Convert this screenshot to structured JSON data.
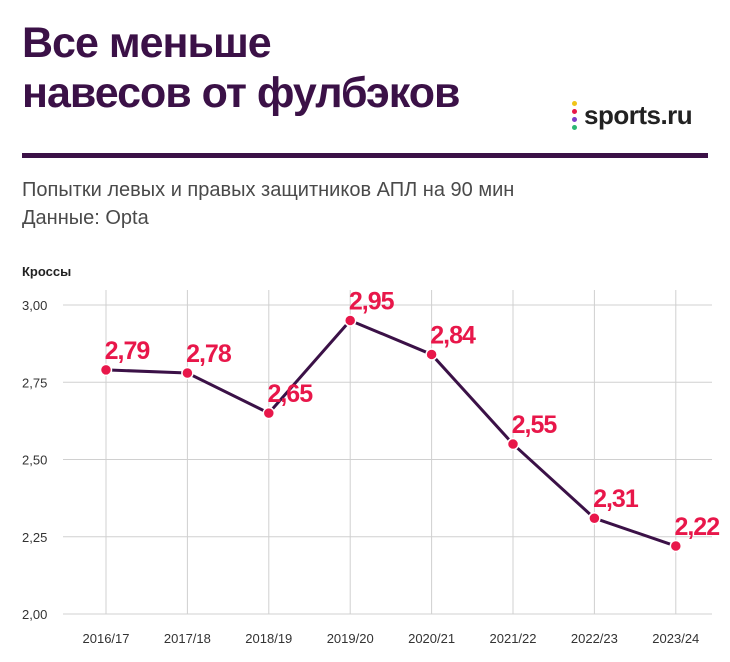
{
  "header": {
    "title_line1": "Все меньше",
    "title_line2": "навесов от фулбэков",
    "logo_text": "sports.ru",
    "subtitle_line1": "Попытки левых и правых защитников АПЛ на 90 мин",
    "subtitle_line2": "Данные: Opta"
  },
  "colors": {
    "title": "#3b1147",
    "line": "#3b1147",
    "marker": "#e8174a",
    "label": "#e8174a",
    "grid": "#d0d0d0",
    "logo_dots": [
      "#f0c419",
      "#e8174a",
      "#7c3cc9",
      "#2bb673"
    ]
  },
  "chart_data": {
    "type": "line",
    "ylabel": "Кроссы",
    "xlabel": "",
    "categories": [
      "2016/17",
      "2017/18",
      "2018/19",
      "2019/20",
      "2020/21",
      "2021/22",
      "2022/23",
      "2023/24"
    ],
    "values": [
      2.79,
      2.78,
      2.65,
      2.95,
      2.84,
      2.55,
      2.31,
      2.22
    ],
    "value_labels": [
      "2,79",
      "2,78",
      "2,65",
      "2,95",
      "2,84",
      "2,55",
      "2,31",
      "2,22"
    ],
    "yticks": [
      3.0,
      2.75,
      2.5,
      2.25,
      2.0
    ],
    "ytick_labels": [
      "3,00",
      "2,75",
      "2,50",
      "2,25",
      "2,00"
    ],
    "ylim": [
      2.0,
      3.0
    ],
    "grid": true
  }
}
